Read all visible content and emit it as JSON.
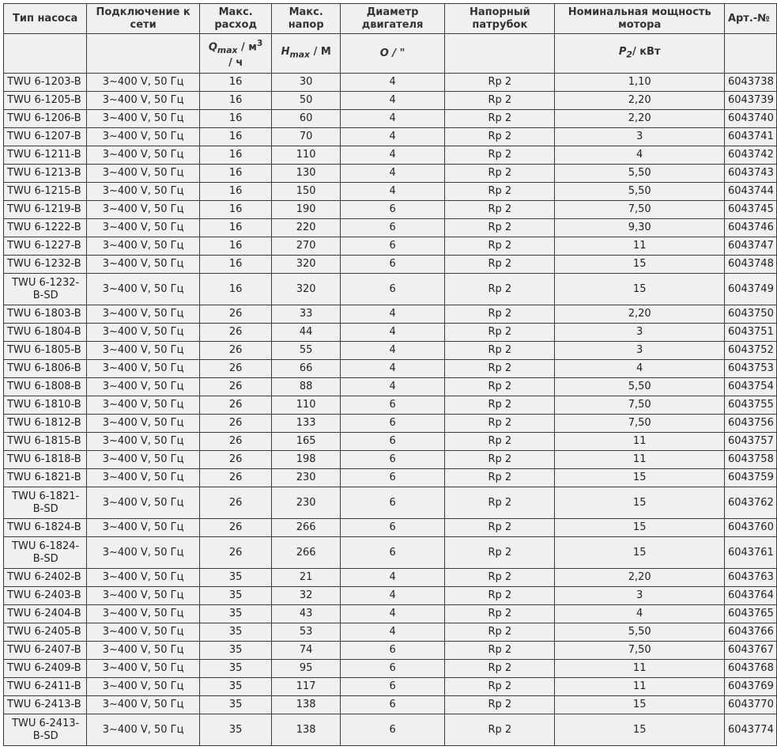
{
  "headers": {
    "type": "Тип насоса",
    "connection": "Подключение к сети",
    "flow": "Макс. расход",
    "head": "Макс. напор",
    "diameter": "Диаметр двигателя",
    "outlet": "Напорный патрубок",
    "power": "Номинальная мощность мотора",
    "art": "Арт.-№"
  },
  "units": {
    "flow_sym": "Q",
    "flow_sub": "max",
    "flow_unit": " / м",
    "flow_sup": "3",
    "flow_unit2": "/ ч",
    "head_sym": "H",
    "head_sub": "max",
    "head_unit": " / М",
    "diameter": "O  / \"",
    "power_sym": "P",
    "power_sub": "2",
    "power_unit": "/ кВт"
  },
  "rows": [
    [
      "TWU 6-1203-B",
      "3~400 V, 50 Гц",
      "16",
      "30",
      "4",
      "Rp 2",
      "1,10",
      "6043738"
    ],
    [
      "TWU 6-1205-B",
      "3~400 V, 50 Гц",
      "16",
      "50",
      "4",
      "Rp 2",
      "2,20",
      "6043739"
    ],
    [
      "TWU 6-1206-B",
      "3~400 V, 50 Гц",
      "16",
      "60",
      "4",
      "Rp 2",
      "2,20",
      "6043740"
    ],
    [
      "TWU 6-1207-B",
      "3~400 V, 50 Гц",
      "16",
      "70",
      "4",
      "Rp 2",
      "3",
      "6043741"
    ],
    [
      "TWU 6-1211-B",
      "3~400 V, 50 Гц",
      "16",
      "110",
      "4",
      "Rp 2",
      "4",
      "6043742"
    ],
    [
      "TWU 6-1213-B",
      "3~400 V, 50 Гц",
      "16",
      "130",
      "4",
      "Rp 2",
      "5,50",
      "6043743"
    ],
    [
      "TWU 6-1215-B",
      "3~400 V, 50 Гц",
      "16",
      "150",
      "4",
      "Rp 2",
      "5,50",
      "6043744"
    ],
    [
      "TWU 6-1219-B",
      "3~400 V, 50 Гц",
      "16",
      "190",
      "6",
      "Rp 2",
      "7,50",
      "6043745"
    ],
    [
      "TWU 6-1222-B",
      "3~400 V, 50 Гц",
      "16",
      "220",
      "6",
      "Rp 2",
      "9,30",
      "6043746"
    ],
    [
      "TWU 6-1227-B",
      "3~400 V, 50 Гц",
      "16",
      "270",
      "6",
      "Rp 2",
      "11",
      "6043747"
    ],
    [
      "TWU 6-1232-B",
      "3~400 V, 50 Гц",
      "16",
      "320",
      "6",
      "Rp 2",
      "15",
      "6043748"
    ],
    [
      "TWU 6-1232-B-SD",
      "3~400 V, 50 Гц",
      "16",
      "320",
      "6",
      "Rp 2",
      "15",
      "6043749"
    ],
    [
      "TWU 6-1803-B",
      "3~400 V, 50 Гц",
      "26",
      "33",
      "4",
      "Rp 2",
      "2,20",
      "6043750"
    ],
    [
      "TWU 6-1804-B",
      "3~400 V, 50 Гц",
      "26",
      "44",
      "4",
      "Rp 2",
      "3",
      "6043751"
    ],
    [
      "TWU 6-1805-B",
      "3~400 V, 50 Гц",
      "26",
      "55",
      "4",
      "Rp 2",
      "3",
      "6043752"
    ],
    [
      "TWU 6-1806-B",
      "3~400 V, 50 Гц",
      "26",
      "66",
      "4",
      "Rp 2",
      "4",
      "6043753"
    ],
    [
      "TWU 6-1808-B",
      "3~400 V, 50 Гц",
      "26",
      "88",
      "4",
      "Rp 2",
      "5,50",
      "6043754"
    ],
    [
      "TWU 6-1810-B",
      "3~400 V, 50 Гц",
      "26",
      "110",
      "6",
      "Rp 2",
      "7,50",
      "6043755"
    ],
    [
      "TWU 6-1812-B",
      "3~400 V, 50 Гц",
      "26",
      "133",
      "6",
      "Rp 2",
      "7,50",
      "6043756"
    ],
    [
      "TWU 6-1815-B",
      "3~400 V, 50 Гц",
      "26",
      "165",
      "6",
      "Rp 2",
      "11",
      "6043757"
    ],
    [
      "TWU 6-1818-B",
      "3~400 V, 50 Гц",
      "26",
      "198",
      "6",
      "Rp 2",
      "11",
      "6043758"
    ],
    [
      "TWU 6-1821-B",
      "3~400 V, 50 Гц",
      "26",
      "230",
      "6",
      "Rp 2",
      "15",
      "6043759"
    ],
    [
      "TWU 6-1821-B-SD",
      "3~400 V, 50 Гц",
      "26",
      "230",
      "6",
      "Rp 2",
      "15",
      "6043762"
    ],
    [
      "TWU 6-1824-B",
      "3~400 V, 50 Гц",
      "26",
      "266",
      "6",
      "Rp 2",
      "15",
      "6043760"
    ],
    [
      "TWU 6-1824-B-SD",
      "3~400 V, 50 Гц",
      "26",
      "266",
      "6",
      "Rp 2",
      "15",
      "6043761"
    ],
    [
      "TWU 6-2402-B",
      "3~400 V, 50 Гц",
      "35",
      "21",
      "4",
      "Rp 2",
      "2,20",
      "6043763"
    ],
    [
      "TWU 6-2403-B",
      "3~400 V, 50 Гц",
      "35",
      "32",
      "4",
      "Rp 2",
      "3",
      "6043764"
    ],
    [
      "TWU 6-2404-B",
      "3~400 V, 50 Гц",
      "35",
      "43",
      "4",
      "Rp 2",
      "4",
      "6043765"
    ],
    [
      "TWU 6-2405-B",
      "3~400 V, 50 Гц",
      "35",
      "53",
      "4",
      "Rp 2",
      "5,50",
      "6043766"
    ],
    [
      "TWU 6-2407-B",
      "3~400 V, 50 Гц",
      "35",
      "74",
      "6",
      "Rp 2",
      "7,50",
      "6043767"
    ],
    [
      "TWU 6-2409-B",
      "3~400 V, 50 Гц",
      "35",
      "95",
      "6",
      "Rp 2",
      "11",
      "6043768"
    ],
    [
      "TWU 6-2411-B",
      "3~400 V, 50 Гц",
      "35",
      "117",
      "6",
      "Rp 2",
      "11",
      "6043769"
    ],
    [
      "TWU 6-2413-B",
      "3~400 V, 50 Гц",
      "35",
      "138",
      "6",
      "Rp 2",
      "15",
      "6043770"
    ],
    [
      "TWU 6-2413-B-SD",
      "3~400 V, 50 Гц",
      "35",
      "138",
      "6",
      "Rp 2",
      "15",
      "6043774"
    ]
  ]
}
